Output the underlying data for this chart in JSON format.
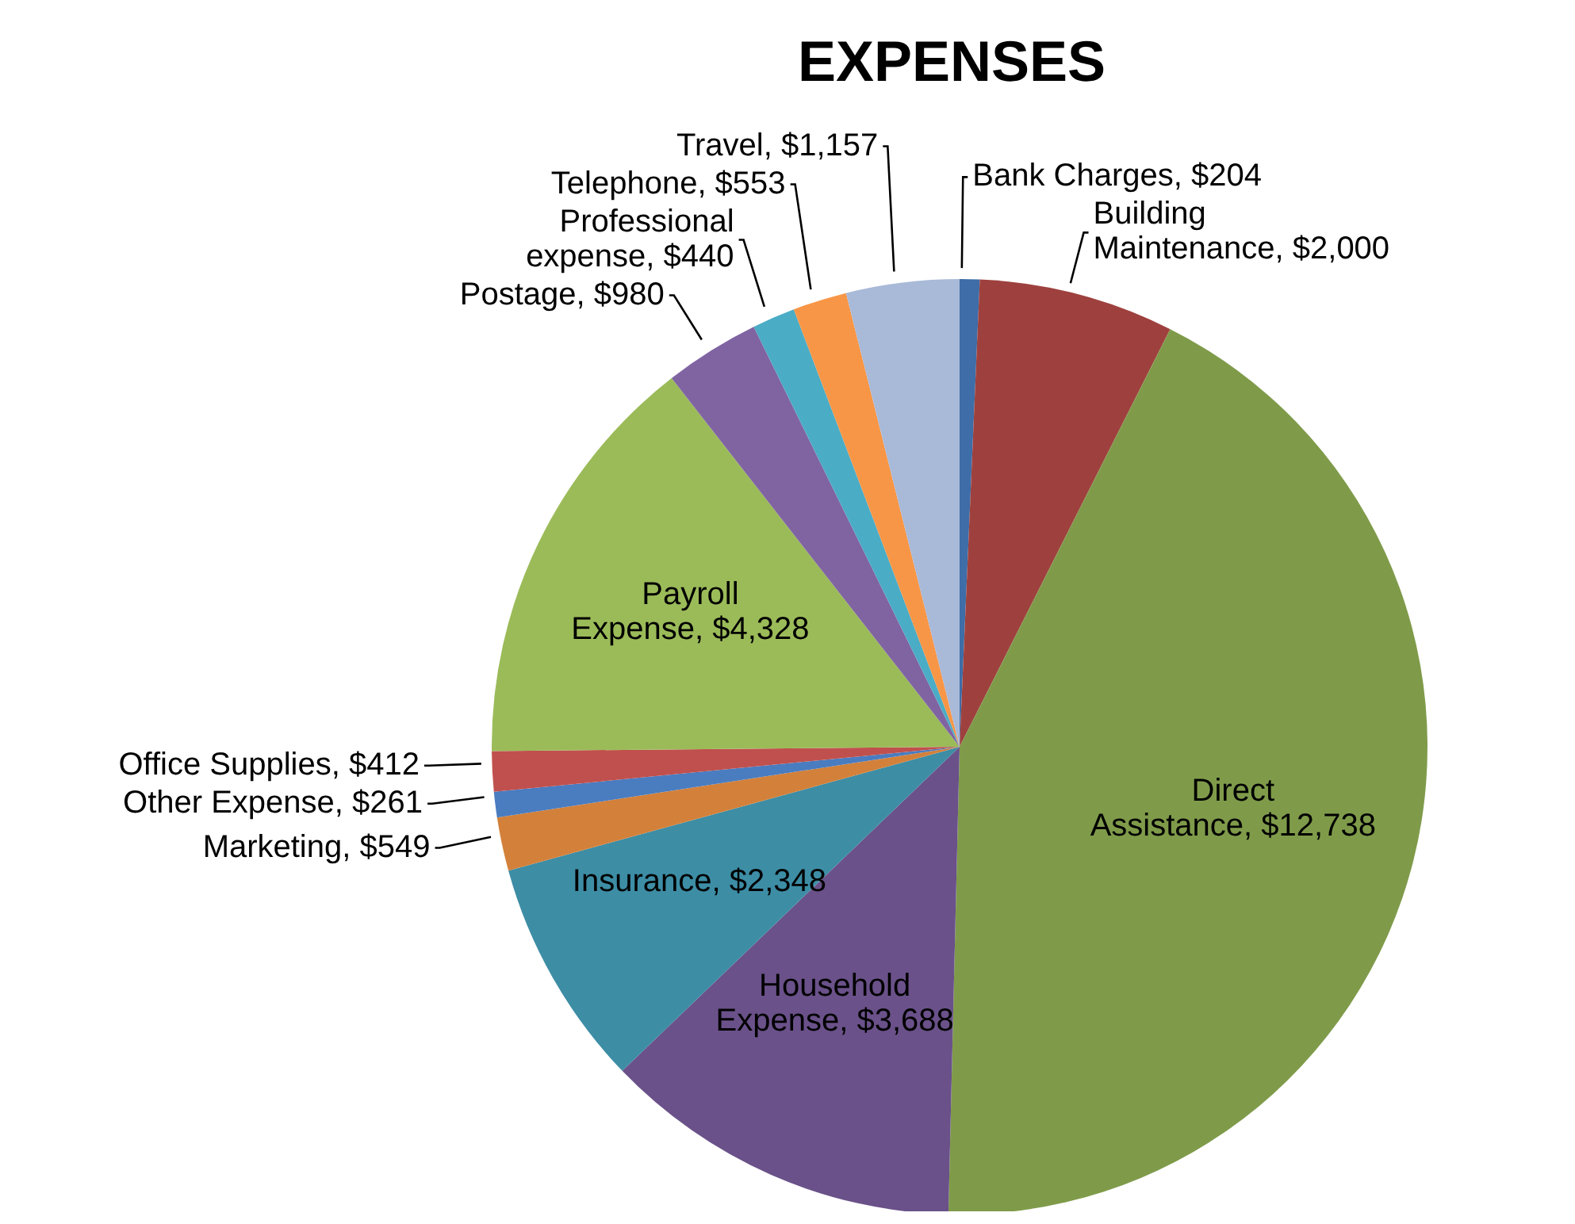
{
  "chart_data": {
    "type": "pie",
    "title": "EXPENSES",
    "categories": [
      "Bank Charges",
      "Building Maintenance",
      "Direct Assistance",
      "Household Expense",
      "Insurance",
      "Marketing",
      "Other Expense",
      "Office Supplies",
      "Payroll Expense",
      "Postage",
      "Professional expense",
      "Telephone",
      "Travel"
    ],
    "values": [
      204,
      2000,
      12738,
      3688,
      2348,
      549,
      261,
      412,
      4328,
      980,
      440,
      553,
      1157
    ],
    "value_labels": [
      "$204",
      "$2,000",
      "$12,738",
      "$3,688",
      "$2,348",
      "$549",
      "$261",
      "$412",
      "$4,328",
      "$980",
      "$440",
      "$553",
      "$1,157"
    ],
    "colors": [
      "#3e6da8",
      "#9e413e",
      "#7f9b4a",
      "#6a5189",
      "#3d8da5",
      "#d3813a",
      "#4a7cc0",
      "#c0504d",
      "#9bbb59",
      "#8064a2",
      "#4bacc6",
      "#f79646",
      "#a9b9d8"
    ]
  }
}
